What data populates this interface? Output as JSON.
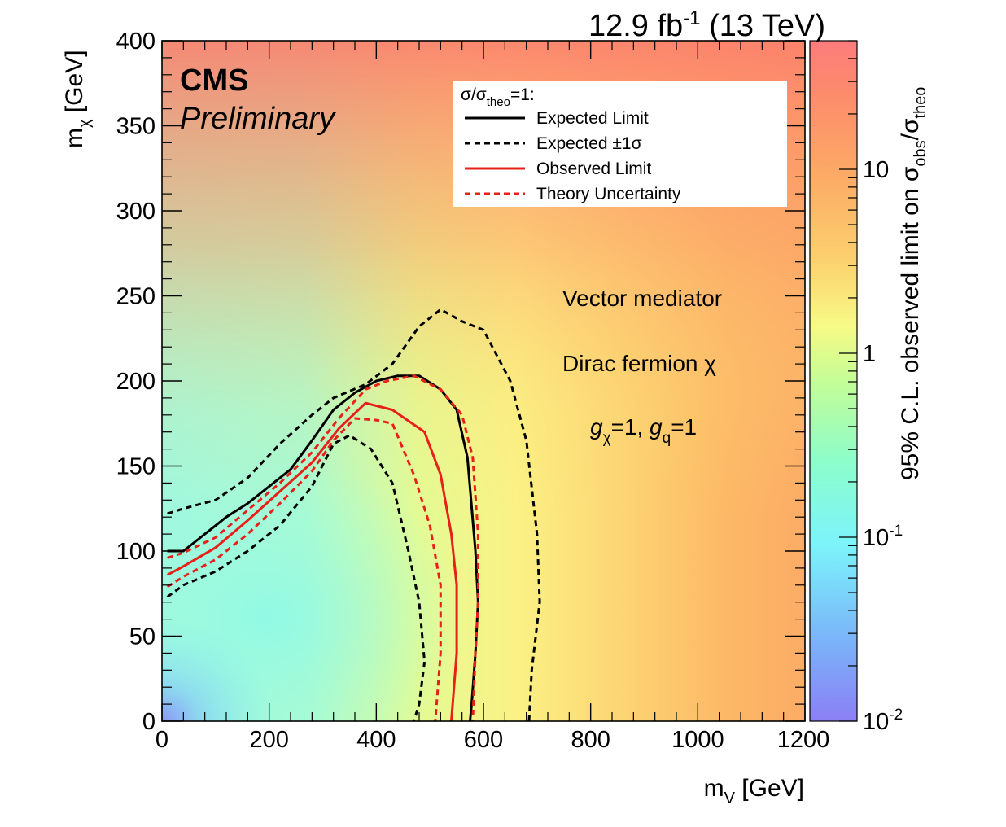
{
  "chart_data": {
    "type": "heatmap",
    "lumi_label": {
      "base": "12.9 fb",
      "sup": "-1",
      "tail": " (13 TeV)"
    },
    "experiment": "CMS",
    "status": "Preliminary",
    "xlabel": {
      "base": "m",
      "sub": "V",
      "tail": " [GeV]"
    },
    "ylabel": {
      "base": "m",
      "sub": "χ",
      "tail": " [GeV]"
    },
    "zlabel": {
      "pre": "95% C.L. observed limit on σ",
      "sub1": "obs",
      "mid": "/σ",
      "sub2": "theo"
    },
    "xlim": [
      0,
      1200
    ],
    "ylim": [
      0,
      400
    ],
    "zlim": [
      0.01,
      50
    ],
    "zscale": "log",
    "x_ticks": [
      "0",
      "200",
      "400",
      "600",
      "800",
      "1000",
      "1200"
    ],
    "y_ticks": [
      "0",
      "50",
      "100",
      "150",
      "200",
      "250",
      "300",
      "350",
      "400"
    ],
    "z_ticks": [
      {
        "value": 10,
        "base": "10",
        "sup": ""
      },
      {
        "value": 1,
        "base": "1",
        "sup": ""
      },
      {
        "value": 0.1,
        "base": "10",
        "sup": "-1"
      },
      {
        "value": 0.01,
        "base": "10",
        "sup": "-2"
      }
    ],
    "legend": {
      "header": {
        "pre": "σ/σ",
        "sub": "theo",
        "post": "=1:"
      },
      "placement": "top-right",
      "entries": [
        {
          "label": "Expected Limit",
          "color": "#000000",
          "dash": "solid"
        },
        {
          "label": "Expected ±1σ",
          "color": "#000000",
          "dash": "dashed"
        },
        {
          "label": "Observed Limit",
          "color": "#e8201a",
          "dash": "solid"
        },
        {
          "label": "Theory Uncertainty",
          "color": "#e8201a",
          "dash": "dashed"
        }
      ]
    },
    "annotations": {
      "mediator": "Vector mediator",
      "dm": "Dirac fermion χ",
      "coupling": {
        "g1": "g",
        "s1": "χ",
        "e1": "=1, ",
        "g2": "g",
        "s2": "q",
        "e2": "=1"
      }
    },
    "series": [
      {
        "name": "Expected Limit",
        "color": "#000000",
        "dash": "solid",
        "points": [
          [
            10,
            100
          ],
          [
            40,
            100
          ],
          [
            80,
            110
          ],
          [
            120,
            120
          ],
          [
            160,
            128
          ],
          [
            200,
            138
          ],
          [
            240,
            148
          ],
          [
            280,
            165
          ],
          [
            320,
            183
          ],
          [
            360,
            193
          ],
          [
            400,
            200
          ],
          [
            440,
            203
          ],
          [
            480,
            203
          ],
          [
            520,
            195
          ],
          [
            550,
            183
          ],
          [
            570,
            155
          ],
          [
            585,
            100
          ],
          [
            590,
            70
          ],
          [
            585,
            40
          ],
          [
            578,
            10
          ],
          [
            575,
            0
          ]
        ]
      },
      {
        "name": "Expected -1σ",
        "color": "#000000",
        "dash": "dashed",
        "points": [
          [
            10,
            122
          ],
          [
            40,
            125
          ],
          [
            100,
            130
          ],
          [
            160,
            143
          ],
          [
            220,
            163
          ],
          [
            280,
            180
          ],
          [
            320,
            190
          ],
          [
            380,
            198
          ],
          [
            430,
            210
          ],
          [
            480,
            232
          ],
          [
            520,
            242
          ],
          [
            560,
            235
          ],
          [
            600,
            230
          ],
          [
            650,
            200
          ],
          [
            680,
            165
          ],
          [
            700,
            110
          ],
          [
            705,
            70
          ],
          [
            690,
            30
          ],
          [
            685,
            0
          ]
        ]
      },
      {
        "name": "Expected +1σ",
        "color": "#000000",
        "dash": "dashed",
        "points": [
          [
            10,
            73
          ],
          [
            40,
            80
          ],
          [
            100,
            88
          ],
          [
            160,
            100
          ],
          [
            220,
            115
          ],
          [
            280,
            138
          ],
          [
            320,
            163
          ],
          [
            350,
            168
          ],
          [
            390,
            160
          ],
          [
            430,
            140
          ],
          [
            460,
            100
          ],
          [
            480,
            70
          ],
          [
            490,
            35
          ],
          [
            480,
            10
          ],
          [
            470,
            0
          ]
        ]
      },
      {
        "name": "Observed Limit",
        "color": "#e8201a",
        "dash": "solid",
        "points": [
          [
            10,
            86
          ],
          [
            40,
            91
          ],
          [
            100,
            102
          ],
          [
            160,
            118
          ],
          [
            220,
            135
          ],
          [
            280,
            152
          ],
          [
            330,
            172
          ],
          [
            380,
            187
          ],
          [
            430,
            183
          ],
          [
            490,
            170
          ],
          [
            520,
            145
          ],
          [
            540,
            110
          ],
          [
            550,
            80
          ],
          [
            550,
            40
          ],
          [
            540,
            0
          ]
        ]
      },
      {
        "name": "Theory Uncertainty (+)",
        "color": "#e8201a",
        "dash": "dashed",
        "points": [
          [
            10,
            96
          ],
          [
            40,
            99
          ],
          [
            100,
            108
          ],
          [
            160,
            124
          ],
          [
            220,
            140
          ],
          [
            280,
            158
          ],
          [
            330,
            178
          ],
          [
            380,
            195
          ],
          [
            420,
            200
          ],
          [
            470,
            203
          ],
          [
            520,
            195
          ],
          [
            560,
            180
          ],
          [
            580,
            155
          ],
          [
            590,
            110
          ],
          [
            590,
            70
          ],
          [
            585,
            40
          ],
          [
            580,
            0
          ]
        ]
      },
      {
        "name": "Theory Uncertainty (-)",
        "color": "#e8201a",
        "dash": "dashed",
        "points": [
          [
            10,
            79
          ],
          [
            40,
            85
          ],
          [
            100,
            95
          ],
          [
            160,
            110
          ],
          [
            220,
            128
          ],
          [
            280,
            147
          ],
          [
            320,
            165
          ],
          [
            360,
            178
          ],
          [
            400,
            177
          ],
          [
            430,
            175
          ],
          [
            470,
            145
          ],
          [
            500,
            115
          ],
          [
            520,
            80
          ],
          [
            520,
            40
          ],
          [
            510,
            0
          ]
        ]
      }
    ],
    "grid": false
  }
}
